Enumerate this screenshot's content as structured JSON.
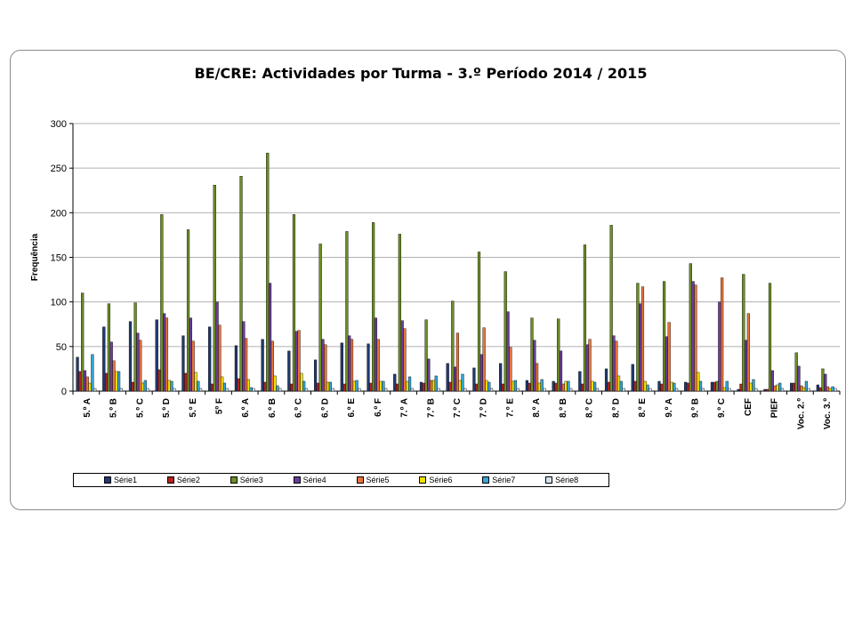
{
  "chart_data": {
    "type": "bar",
    "title": "BE/CRE: Actividades por Turma - 3.º Período 2014 / 2015",
    "xlabel": "",
    "ylabel": "Frequência",
    "ylim": [
      0,
      300
    ],
    "yticks": [
      0,
      50,
      100,
      150,
      200,
      250,
      300
    ],
    "grid": true,
    "legend_position": "bottom",
    "categories": [
      "5.º A",
      "5.º B",
      "5.º C",
      "5.º D",
      "5.º E",
      "5º F",
      "6.º A",
      "6.º B",
      "6.º C",
      "6.º D",
      "6.º E",
      "6.º F",
      "7.º A",
      "7.º B",
      "7.º C",
      "7.º D",
      "7.º E",
      "8.º A",
      "8.º B",
      "8.º C",
      "8.º D",
      "8.º E",
      "9.º A",
      "9.º B",
      "9.º C",
      "CEF",
      "PIEF",
      "Voc. 2.º",
      "Voc. 3.º"
    ],
    "series": [
      {
        "name": "Série1",
        "color": "#1f3a6e",
        "values": [
          38,
          72,
          78,
          80,
          62,
          72,
          51,
          58,
          45,
          35,
          54,
          53,
          19,
          10,
          31,
          26,
          31,
          12,
          11,
          22,
          25,
          30,
          11,
          10,
          10,
          2,
          2,
          9,
          7
        ]
      },
      {
        "name": "Série2",
        "color": "#b22222",
        "values": [
          22,
          20,
          10,
          24,
          20,
          8,
          14,
          10,
          8,
          9,
          8,
          9,
          8,
          9,
          10,
          8,
          8,
          9,
          9,
          8,
          10,
          11,
          8,
          9,
          10,
          8,
          2,
          9,
          4
        ]
      },
      {
        "name": "Série3",
        "color": "#6b8e23",
        "values": [
          110,
          98,
          99,
          198,
          181,
          231,
          241,
          267,
          198,
          165,
          179,
          189,
          176,
          80,
          101,
          156,
          134,
          82,
          81,
          164,
          186,
          121,
          123,
          143,
          11,
          131,
          121,
          43,
          25
        ]
      },
      {
        "name": "Série4",
        "color": "#6a3d9a",
        "values": [
          23,
          55,
          65,
          87,
          82,
          100,
          78,
          121,
          67,
          58,
          62,
          82,
          79,
          36,
          27,
          41,
          89,
          57,
          45,
          52,
          62,
          98,
          61,
          123,
          100,
          57,
          23,
          28,
          19
        ]
      },
      {
        "name": "Série5",
        "color": "#e8733a",
        "values": [
          16,
          34,
          57,
          82,
          56,
          74,
          59,
          56,
          68,
          52,
          58,
          58,
          70,
          12,
          65,
          71,
          49,
          31,
          8,
          58,
          56,
          117,
          77,
          119,
          127,
          87,
          6,
          6,
          5
        ]
      },
      {
        "name": "Série6",
        "color": "#f2e200",
        "values": [
          9,
          22,
          9,
          12,
          21,
          16,
          13,
          17,
          20,
          10,
          11,
          11,
          11,
          12,
          12,
          12,
          11,
          9,
          11,
          11,
          17,
          11,
          10,
          21,
          4,
          9,
          7,
          4,
          3
        ]
      },
      {
        "name": "Série7",
        "color": "#33a6d6",
        "values": [
          41,
          22,
          12,
          11,
          11,
          9,
          4,
          6,
          11,
          10,
          12,
          11,
          16,
          17,
          19,
          10,
          12,
          13,
          11,
          10,
          11,
          7,
          9,
          11,
          11,
          13,
          9,
          11,
          5
        ]
      },
      {
        "name": "Série8",
        "color": "#d5e3f0",
        "values": [
          3,
          3,
          3,
          3,
          3,
          3,
          3,
          3,
          3,
          3,
          3,
          3,
          3,
          3,
          3,
          3,
          3,
          3,
          3,
          3,
          3,
          3,
          3,
          3,
          3,
          3,
          3,
          3,
          3
        ]
      }
    ]
  }
}
